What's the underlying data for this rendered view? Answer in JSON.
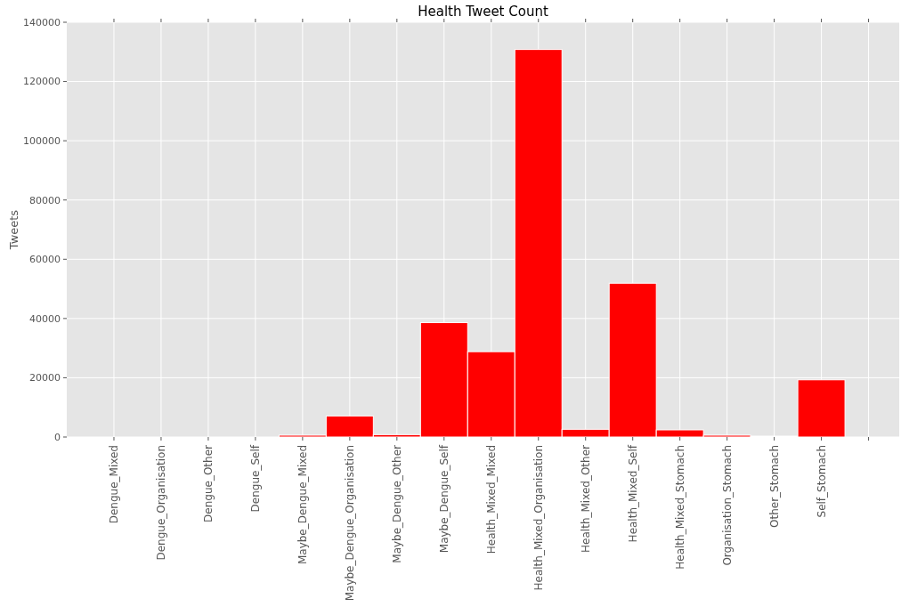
{
  "chart_data": {
    "type": "bar",
    "title": "Health Tweet Count",
    "ylabel": "Tweets",
    "categories": [
      "Dengue_Mixed",
      "Dengue_Organisation",
      "Dengue_Other",
      "Dengue_Self",
      "Maybe_Dengue_Mixed",
      "Maybe_Dengue_Organisation",
      "Maybe_Dengue_Other",
      "Maybe_Dengue_Self",
      "Health_Mixed_Mixed",
      "Health_Mixed_Organisation",
      "Health_Mixed_Other",
      "Health_Mixed_Self",
      "Health_Mixed_Stomach",
      "Organisation_Stomach",
      "Other_Stomach",
      "Self_Stomach",
      null
    ],
    "values": [
      0,
      0,
      0,
      0,
      600,
      7100,
      800,
      38600,
      28800,
      130800,
      2600,
      51900,
      2400,
      600,
      300,
      19300,
      null
    ],
    "color": "#ff0000",
    "ylim": [
      0,
      140000
    ],
    "yticks": [
      0,
      20000,
      40000,
      60000,
      80000,
      100000,
      120000,
      140000
    ],
    "grid": true
  }
}
